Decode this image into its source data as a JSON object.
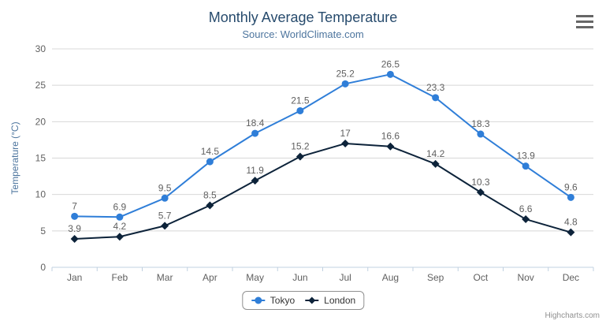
{
  "header": {
    "title": "Monthly Average Temperature",
    "subtitle": "Source: WorldClimate.com"
  },
  "context_menu": {
    "icon": "hamburger-icon"
  },
  "credits": {
    "label": "Highcharts.com"
  },
  "chart_data": {
    "type": "line",
    "title": "Monthly Average Temperature",
    "subtitle": "Source: WorldClimate.com",
    "categories": [
      "Jan",
      "Feb",
      "Mar",
      "Apr",
      "May",
      "Jun",
      "Jul",
      "Aug",
      "Sep",
      "Oct",
      "Nov",
      "Dec"
    ],
    "series": [
      {
        "name": "Tokyo",
        "color": "#2f7ed8",
        "marker": "circle",
        "values": [
          7,
          6.9,
          9.5,
          14.5,
          18.4,
          21.5,
          25.2,
          26.5,
          23.3,
          18.3,
          13.9,
          9.6
        ]
      },
      {
        "name": "London",
        "color": "#0d233a",
        "marker": "diamond",
        "values": [
          3.9,
          4.2,
          5.7,
          8.5,
          11.9,
          15.2,
          17,
          16.6,
          14.2,
          10.3,
          6.6,
          4.8
        ]
      }
    ],
    "xlabel": "",
    "ylabel": "Temperature (°C)",
    "ylim": [
      0,
      30
    ],
    "yticks": [
      0,
      5,
      10,
      15,
      20,
      25,
      30
    ],
    "grid": true,
    "data_labels": true,
    "legend_position": "bottom-center",
    "grid_color": "#d8d8d8",
    "axis_line_color": "#c0d0e0"
  }
}
